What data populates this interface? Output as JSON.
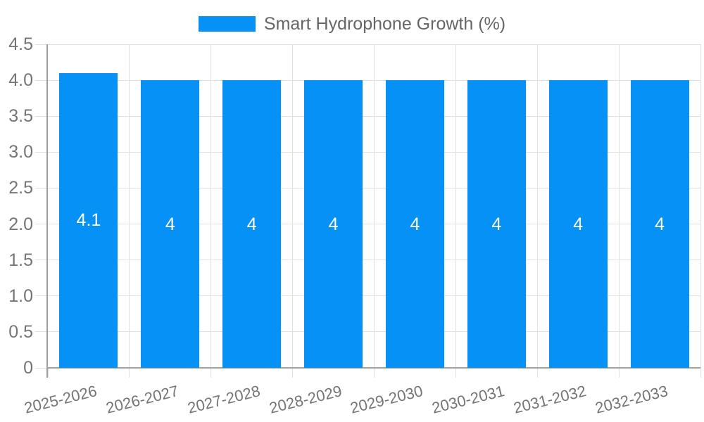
{
  "legend": {
    "label": "Smart Hydrophone Growth (%)"
  },
  "colors": {
    "bar": "#0591F5",
    "grid": "#E0E0E0",
    "axis": "#A0A0A0",
    "axis_text": "#757575",
    "legend_text": "#666666",
    "value_text": "#FFFFFF",
    "background": "#FFFFFF"
  },
  "chart_data": {
    "type": "bar",
    "title": "Smart Hydrophone Growth (%)",
    "series_name": "Smart Hydrophone Growth (%)",
    "categories": [
      "2025-2026",
      "2026-2027",
      "2027-2028",
      "2028-2029",
      "2029-2030",
      "2030-2031",
      "2031-2032",
      "2032-2033"
    ],
    "values": [
      4.1,
      4,
      4,
      4,
      4,
      4,
      4,
      4
    ],
    "value_labels": [
      "4.1",
      "4",
      "4",
      "4",
      "4",
      "4",
      "4",
      "4"
    ],
    "xlabel": "",
    "ylabel": "",
    "ylim": [
      0,
      4.5
    ],
    "y_tick_step": 0.5,
    "y_tick_labels": [
      "0",
      "0.5",
      "1.0",
      "1.5",
      "2.0",
      "2.5",
      "3.0",
      "3.5",
      "4.0",
      "4.5"
    ],
    "grid": true,
    "legend_position": "top",
    "x_label_rotation_deg": -14
  }
}
